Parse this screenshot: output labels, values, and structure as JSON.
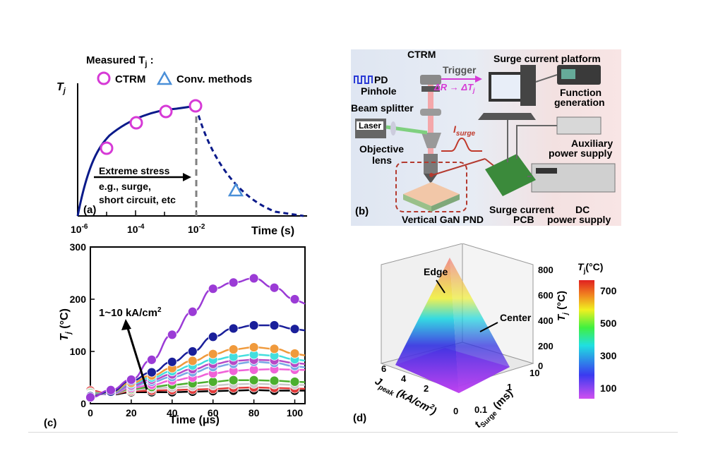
{
  "figure": {
    "panel_a": {
      "label": "(a)",
      "legend_title": "Measured T",
      "legend_title_sub": "j",
      "legend_title_suffix": " :",
      "legend_ctrm": "CTRM",
      "legend_conv": "Conv. methods",
      "ylabel": "T",
      "ylabel_sub": "j",
      "stress_line1": "Extreme stress",
      "stress_line2": "e.g., surge,",
      "stress_line3": "short circuit, etc",
      "xlabel": "Time (s)",
      "xticks": [
        "10-6",
        "10-4",
        "10-2"
      ],
      "colors": {
        "ctrm": "#d63ad6",
        "conv": "#4a8fd8",
        "curve": "#0a1a8a"
      }
    },
    "panel_b": {
      "label": "(b)",
      "ctrm": "CTRM",
      "platform": "Surge current platform",
      "pd": "PD",
      "trigger": "Trigger",
      "pinhole": "Pinhole",
      "delta": "ΔR → ΔT",
      "delta_sub": "j",
      "function_gen_1": "Function",
      "function_gen_2": "generation",
      "beam_splitter": "Beam splitter",
      "laser": "Laser",
      "isurge": "I",
      "isurge_sub": "surge",
      "objective_1": "Objective",
      "objective_2": "lens",
      "aux_1": "Auxiliary",
      "aux_2": "power supply",
      "surge_pcb_1": "Surge current",
      "surge_pcb_2": "PCB",
      "dc_1": "DC",
      "dc_2": "power supply",
      "device": "Vertical GaN PND"
    },
    "panel_c": {
      "label": "(c)",
      "annotation": "1~10 kA/cm",
      "annotation_sup": "2",
      "ylabel": "T",
      "ylabel_sub": "j",
      "ylabel_unit": " (°C)",
      "xlabel": "Time (μs)"
    },
    "panel_d": {
      "label": "(d)",
      "edge": "Edge",
      "center": "Center",
      "colorbar_title": "T",
      "colorbar_title_sub": "j",
      "colorbar_title_unit": "(°C)",
      "colorbar_ticks": [
        "700",
        "500",
        "300",
        "100"
      ],
      "z_ticks": [
        "800",
        "600",
        "400",
        "200",
        "0"
      ],
      "z_label": "T",
      "z_label_sub": "j",
      "z_label_unit": " (°C)",
      "x_label": "J",
      "x_label_sub": "peak",
      "x_label_unit": " (kA/cm",
      "x_label_sup": "2",
      "x_label_end": ")",
      "x_ticks": [
        "6",
        "4",
        "2",
        "0"
      ],
      "y_label": "t",
      "y_label_sub": "Surge",
      "y_label_unit": " (ms)",
      "y_ticks": [
        "10",
        "1",
        "0.1"
      ]
    }
  },
  "chart_data": [
    {
      "type": "scatter",
      "panel": "a",
      "x_scale": "log",
      "x_ticks": [
        "10-6",
        "10-4",
        "10-2"
      ],
      "xlabel": "Time (s)",
      "ylabel": "Tj",
      "series": [
        {
          "name": "CTRM",
          "x": [
            3e-06,
            3e-05,
            0.0003,
            0.003,
            0.01
          ],
          "y": [
            0.5,
            0.76,
            0.9,
            0.98,
            1.0
          ]
        },
        {
          "name": "Conv. methods",
          "x": [
            0.1
          ],
          "y": [
            0.22
          ]
        }
      ]
    },
    {
      "type": "line",
      "panel": "c",
      "xlabel": "Time (μs)",
      "ylabel": "Tj (°C)",
      "xlim": [
        0,
        105
      ],
      "ylim": [
        0,
        300
      ],
      "x_ticks": [
        0,
        20,
        40,
        60,
        80,
        100
      ],
      "y_ticks": [
        0,
        100,
        200,
        300
      ],
      "x": [
        0,
        10,
        20,
        30,
        40,
        50,
        60,
        70,
        80,
        90,
        100
      ],
      "series": [
        {
          "color": "#000000",
          "values": [
            25,
            17,
            22,
            22,
            22,
            23,
            24,
            25,
            26,
            25,
            25
          ]
        },
        {
          "color": "#e23b3b",
          "values": [
            25,
            18,
            24,
            25,
            26,
            27,
            28,
            30,
            31,
            30,
            29
          ]
        },
        {
          "color": "#c9c9c9",
          "values": [
            22,
            18,
            26,
            29,
            31,
            33,
            35,
            37,
            38,
            37,
            36
          ]
        },
        {
          "color": "#4caf2e",
          "values": [
            20,
            18,
            28,
            32,
            36,
            39,
            42,
            45,
            45,
            44,
            42
          ]
        },
        {
          "color": "#f062d8",
          "values": [
            18,
            18,
            30,
            36,
            44,
            50,
            58,
            63,
            65,
            66,
            65
          ]
        },
        {
          "color": "#7aa9e6",
          "values": [
            18,
            19,
            33,
            42,
            51,
            60,
            70,
            76,
            80,
            78,
            72
          ]
        },
        {
          "color": "#b64ac6",
          "values": [
            17,
            20,
            35,
            46,
            56,
            66,
            76,
            82,
            84,
            83,
            78
          ]
        },
        {
          "color": "#44dede",
          "values": [
            16,
            21,
            38,
            50,
            62,
            73,
            84,
            90,
            94,
            92,
            85
          ]
        },
        {
          "color": "#f09a3c",
          "values": [
            15,
            22,
            40,
            54,
            68,
            82,
            95,
            104,
            108,
            105,
            96
          ]
        },
        {
          "color": "#1a1f9a",
          "values": [
            14,
            23,
            44,
            60,
            80,
            100,
            128,
            144,
            150,
            150,
            143
          ]
        },
        {
          "color": "#9b3bd6",
          "values": [
            12,
            26,
            46,
            84,
            132,
            176,
            220,
            232,
            240,
            222,
            200
          ]
        }
      ]
    },
    {
      "type": "surface",
      "panel": "d",
      "xlabel": "Jpeak (kA/cm2)",
      "ylabel": "tSurge (ms)",
      "zlabel": "Tj (°C)",
      "x_ticks": [
        6,
        4,
        2,
        0
      ],
      "y_ticks": [
        10,
        1,
        0.1
      ],
      "z_ticks": [
        800,
        600,
        400,
        200,
        0
      ],
      "colorbar_ticks": [
        700,
        500,
        300,
        100
      ]
    }
  ]
}
